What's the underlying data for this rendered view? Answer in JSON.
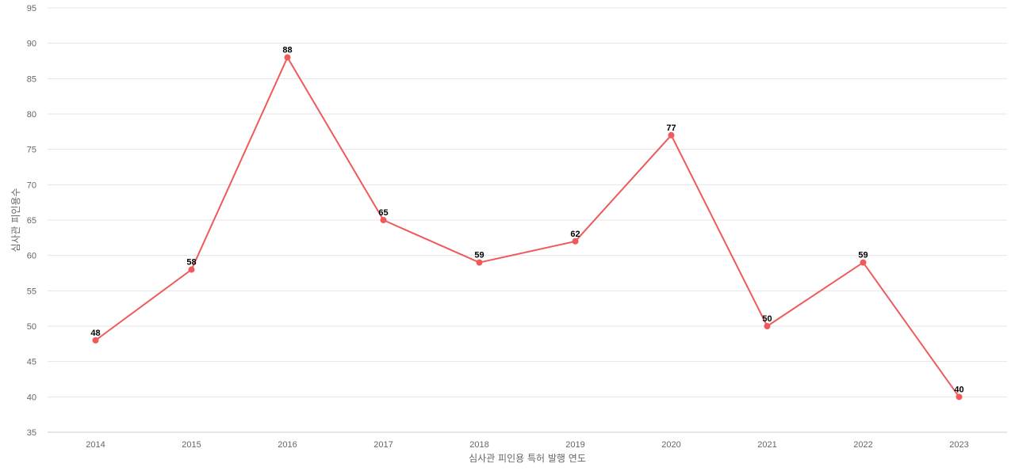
{
  "chart_data": {
    "type": "line",
    "title": "",
    "xlabel": "심사관 피인용 특허 발행 연도",
    "ylabel": "심사관 피인용수",
    "categories": [
      "2014",
      "2015",
      "2016",
      "2017",
      "2018",
      "2019",
      "2020",
      "2021",
      "2022",
      "2023"
    ],
    "series": [
      {
        "values": [
          48,
          58,
          88,
          65,
          59,
          62,
          77,
          50,
          59,
          40
        ],
        "color": "#f05a5a"
      }
    ],
    "ylim": [
      35,
      95
    ],
    "yticks": [
      35,
      40,
      45,
      50,
      55,
      60,
      65,
      70,
      75,
      80,
      85,
      90,
      95
    ],
    "grid": true,
    "data_labels": true
  }
}
